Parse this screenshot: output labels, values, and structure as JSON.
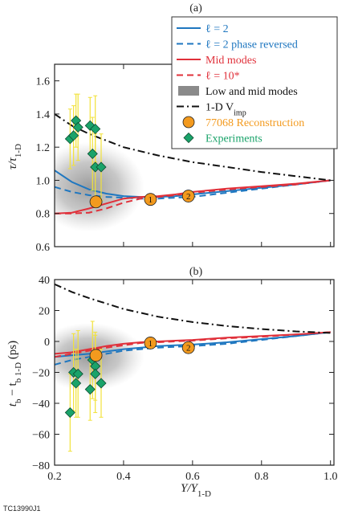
{
  "footer": "TC13990J1",
  "legend": {
    "entries": [
      {
        "key": "l2",
        "label": "ℓ = 2",
        "color": "#1f77c0",
        "style": "solid"
      },
      {
        "key": "l2r",
        "label": "ℓ = 2 phase reversed",
        "color": "#1f77c0",
        "style": "dashed"
      },
      {
        "key": "mid",
        "label": "Mid modes",
        "color": "#e0303a",
        "style": "solid"
      },
      {
        "key": "l10",
        "label": "ℓ = 10*",
        "color": "#e0303a",
        "style": "dashed"
      },
      {
        "key": "low",
        "label": "Low and mid modes",
        "color": "#888888",
        "style": "patch"
      },
      {
        "key": "vimp",
        "label": "1-D V",
        "label_sub": "imp",
        "color": "#111111",
        "style": "dashdot"
      },
      {
        "key": "recon",
        "label": "77068 Reconstruction",
        "color": "#f39a1e",
        "style": "circle"
      },
      {
        "key": "exp",
        "label": "Experiments",
        "color": "#1aa36a",
        "style": "diamond"
      }
    ]
  },
  "colors": {
    "blue": "#1f77c0",
    "red": "#e0303a",
    "black": "#111111",
    "orange": "#f39a1e",
    "green": "#1aa36a",
    "errbar": "#f2e23a",
    "cloud": "#8a8a8a"
  },
  "chart_data": [
    {
      "panel_label": "(a)",
      "type": "line",
      "xlabel": "",
      "ylabel_main": "τ/τ",
      "ylabel_sub": "1-D",
      "xlim": [
        0.2,
        1.01
      ],
      "ylim": [
        0.6,
        1.7
      ],
      "xticks": [
        0.2,
        0.4,
        0.6,
        0.8,
        1.0
      ],
      "yticks": [
        0.6,
        0.8,
        1.0,
        1.2,
        1.4,
        1.6
      ],
      "ytick_labels": [
        "0.6",
        "0.8",
        "1.0",
        "1.2",
        "1.4",
        "1.6"
      ],
      "series": [
        {
          "key": "l2",
          "x": [
            0.2,
            0.25,
            0.3,
            0.35,
            0.4,
            0.45,
            0.5,
            0.55,
            0.6,
            0.7,
            0.8,
            0.9,
            1.0
          ],
          "y": [
            1.06,
            0.99,
            0.945,
            0.92,
            0.905,
            0.9,
            0.9,
            0.905,
            0.915,
            0.935,
            0.955,
            0.975,
            1.0
          ]
        },
        {
          "key": "l2r",
          "x": [
            0.2,
            0.25,
            0.3,
            0.35,
            0.4,
            0.45,
            0.5,
            0.55,
            0.6,
            0.7,
            0.8,
            0.9,
            1.0
          ],
          "y": [
            0.96,
            0.93,
            0.91,
            0.9,
            0.895,
            0.89,
            0.89,
            0.895,
            0.9,
            0.925,
            0.95,
            0.975,
            1.0
          ]
        },
        {
          "key": "mid",
          "x": [
            0.2,
            0.25,
            0.3,
            0.35,
            0.4,
            0.45,
            0.5,
            0.55,
            0.6,
            0.7,
            0.8,
            0.9,
            1.0
          ],
          "y": [
            0.8,
            0.805,
            0.83,
            0.86,
            0.89,
            0.9,
            0.905,
            0.915,
            0.93,
            0.95,
            0.965,
            0.98,
            1.0
          ]
        },
        {
          "key": "l10",
          "x": [
            0.2,
            0.25,
            0.3,
            0.35,
            0.4,
            0.45,
            0.5,
            0.55,
            0.6,
            0.7,
            0.8,
            0.9,
            1.0
          ],
          "y": [
            0.8,
            0.8,
            0.805,
            0.83,
            0.865,
            0.89,
            0.9,
            0.91,
            0.925,
            0.945,
            0.96,
            0.975,
            1.0
          ]
        },
        {
          "key": "vimp",
          "x": [
            0.2,
            0.25,
            0.3,
            0.35,
            0.4,
            0.5,
            0.6,
            0.7,
            0.8,
            0.9,
            1.0
          ],
          "y": [
            1.4,
            1.33,
            1.28,
            1.24,
            1.2,
            1.15,
            1.11,
            1.08,
            1.05,
            1.025,
            1.0
          ]
        }
      ],
      "cloud": {
        "center": [
          0.3,
          0.96
        ],
        "radius": [
          0.16,
          0.27
        ]
      },
      "reconstruction": [
        {
          "x": 0.32,
          "y": 0.87,
          "label": ""
        },
        {
          "x": 0.478,
          "y": 0.885,
          "label": "1"
        },
        {
          "x": 0.588,
          "y": 0.905,
          "label": "2"
        }
      ],
      "experiments": [
        {
          "x": 0.245,
          "y": 1.25,
          "err": 0.18
        },
        {
          "x": 0.255,
          "y": 1.27,
          "err": 0.18
        },
        {
          "x": 0.262,
          "y": 1.36,
          "err": 0.16
        },
        {
          "x": 0.268,
          "y": 1.32,
          "err": 0.2
        },
        {
          "x": 0.303,
          "y": 1.33,
          "err": 0.17
        },
        {
          "x": 0.31,
          "y": 1.16,
          "err": 0.22
        },
        {
          "x": 0.318,
          "y": 1.31,
          "err": 0.2
        },
        {
          "x": 0.318,
          "y": 1.08,
          "err": 0.2
        },
        {
          "x": 0.335,
          "y": 1.08,
          "err": 0.2
        }
      ]
    },
    {
      "panel_label": "(b)",
      "type": "line",
      "xlabel_main": "Y/Y",
      "xlabel_sub": "1-D",
      "ylabel_main": "t",
      "ylabel_sub1": "b",
      "ylabel_mid": " − t",
      "ylabel_sub2": "b 1-D",
      "ylabel_unit": " (ps)",
      "xlim": [
        0.2,
        1.01
      ],
      "ylim": [
        -80,
        40
      ],
      "xticks": [
        0.2,
        0.4,
        0.6,
        0.8,
        1.0
      ],
      "xtick_labels": [
        "0.2",
        "0.4",
        "0.6",
        "0.8",
        "1.0"
      ],
      "yticks": [
        -80,
        -60,
        -40,
        -20,
        0,
        20,
        40
      ],
      "ytick_labels": [
        "−80",
        "−60",
        "−40",
        "−20",
        "0",
        "20",
        "40"
      ],
      "series": [
        {
          "key": "l2",
          "x": [
            0.2,
            0.25,
            0.3,
            0.35,
            0.4,
            0.45,
            0.5,
            0.55,
            0.6,
            0.7,
            0.8,
            0.9,
            1.0
          ],
          "y": [
            -10,
            -9,
            -8,
            -6.5,
            -5,
            -4,
            -3,
            -2.5,
            -2,
            -0.5,
            1.5,
            3.5,
            6
          ]
        },
        {
          "key": "l2r",
          "x": [
            0.2,
            0.25,
            0.3,
            0.35,
            0.4,
            0.45,
            0.5,
            0.55,
            0.6,
            0.7,
            0.8,
            0.9,
            1.0
          ],
          "y": [
            -15,
            -12,
            -10,
            -8,
            -6,
            -5,
            -4,
            -3.5,
            -3,
            -1.5,
            1,
            3.5,
            6
          ]
        },
        {
          "key": "mid",
          "x": [
            0.2,
            0.25,
            0.3,
            0.35,
            0.4,
            0.45,
            0.5,
            0.55,
            0.6,
            0.7,
            0.8,
            0.9,
            1.0
          ],
          "y": [
            -8,
            -7,
            -5,
            -3,
            -1.5,
            -0.5,
            0,
            0.5,
            1,
            2.5,
            3.5,
            4.5,
            6
          ]
        },
        {
          "key": "l10",
          "x": [
            0.2,
            0.25,
            0.3,
            0.35,
            0.4,
            0.45,
            0.5,
            0.55,
            0.6,
            0.7,
            0.8,
            0.9,
            1.0
          ],
          "y": [
            -10,
            -8,
            -6,
            -4,
            -2.5,
            -1,
            -0.5,
            0,
            0.5,
            2,
            3,
            4.5,
            6
          ]
        },
        {
          "key": "vimp",
          "x": [
            0.2,
            0.25,
            0.3,
            0.35,
            0.4,
            0.5,
            0.6,
            0.7,
            0.8,
            0.9,
            1.0
          ],
          "y": [
            37,
            32,
            28,
            24.5,
            21,
            16,
            12.5,
            10,
            8,
            6.5,
            5.5
          ]
        }
      ],
      "cloud": {
        "center": [
          0.3,
          -10
        ],
        "radius": [
          0.16,
          22
        ]
      },
      "reconstruction": [
        {
          "x": 0.32,
          "y": -9,
          "label": ""
        },
        {
          "x": 0.478,
          "y": -1,
          "label": "1"
        },
        {
          "x": 0.588,
          "y": -4,
          "label": "2"
        }
      ],
      "experiments": [
        {
          "x": 0.245,
          "y": -46,
          "err": 25
        },
        {
          "x": 0.255,
          "y": -20,
          "err": 25
        },
        {
          "x": 0.262,
          "y": -27,
          "err": 22
        },
        {
          "x": 0.268,
          "y": -21,
          "err": 28
        },
        {
          "x": 0.303,
          "y": -31,
          "err": 20
        },
        {
          "x": 0.31,
          "y": -12,
          "err": 25
        },
        {
          "x": 0.318,
          "y": -16,
          "err": 22
        },
        {
          "x": 0.318,
          "y": -21,
          "err": 25
        },
        {
          "x": 0.335,
          "y": -27,
          "err": 22
        }
      ]
    }
  ]
}
